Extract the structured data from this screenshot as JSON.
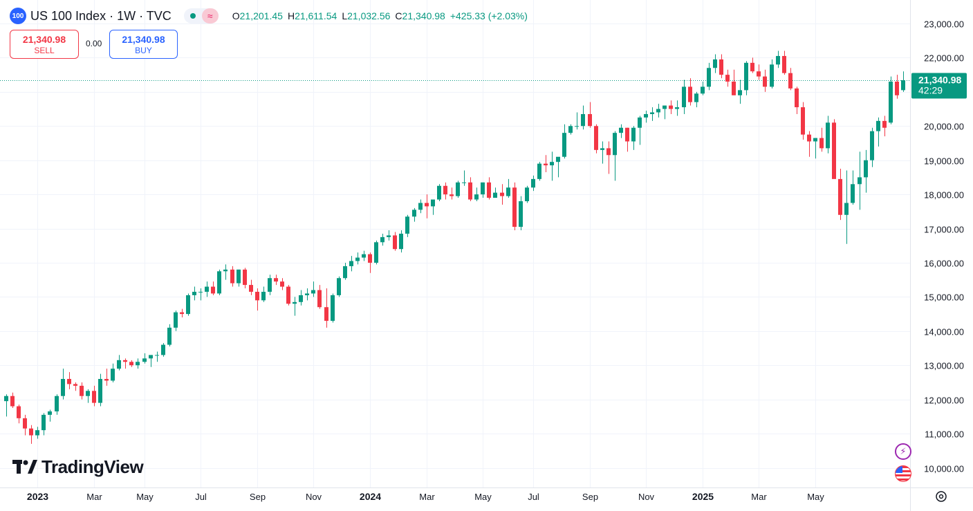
{
  "header": {
    "badge": "100",
    "title": "US 100 Index · 1W · TVC",
    "ohlc": {
      "o_label": "O",
      "o_value": "21,201.45",
      "h_label": "H",
      "h_value": "21,611.54",
      "l_label": "L",
      "l_value": "21,032.56",
      "c_label": "C",
      "c_value": "21,340.98",
      "change": "+425.33 (+2.03%)"
    }
  },
  "trade": {
    "sell_price": "21,340.98",
    "sell_label": "SELL",
    "spread": "0.00",
    "buy_price": "21,340.98",
    "buy_label": "BUY"
  },
  "logo": {
    "text": "TradingView"
  },
  "price_tag": {
    "price": "21,340.98",
    "countdown": "42:29"
  },
  "colors": {
    "up": "#089981",
    "down": "#f23645",
    "grid": "#f0f3fa",
    "text": "#131722",
    "accent": "#2962ff"
  },
  "icons": [
    "gear-icon",
    "lightning-icon",
    "us-flag-icon"
  ],
  "chart_data": {
    "type": "candlestick",
    "title": "US 100 Index · 1W · TVC",
    "ylim": [
      9700,
      23300
    ],
    "y_ticks": [
      10000,
      11000,
      12000,
      13000,
      14000,
      15000,
      16000,
      17000,
      18000,
      19000,
      20000,
      21000,
      22000,
      23000
    ],
    "y_tick_labels": [
      "10,000.00",
      "11,000.00",
      "12,000.00",
      "13,000.00",
      "14,000.00",
      "15,000.00",
      "16,000.00",
      "17,000.00",
      "18,000.00",
      "19,000.00",
      "20,000.00",
      "21,000.00",
      "22,000.00",
      "23,000.00"
    ],
    "x_tick_labels": [
      "2023",
      "Mar",
      "May",
      "Jul",
      "Sep",
      "Nov",
      "2024",
      "Mar",
      "May",
      "Jul",
      "Sep",
      "Nov",
      "2025",
      "Mar",
      "May"
    ],
    "x_tick_bold": [
      true,
      false,
      false,
      false,
      false,
      false,
      true,
      false,
      false,
      false,
      false,
      false,
      true,
      false,
      false
    ],
    "x_tick_index": [
      5,
      14,
      22,
      31,
      40,
      49,
      58,
      67,
      76,
      84,
      93,
      102,
      111,
      120,
      129
    ],
    "last_price": 21340.98,
    "series": [
      {
        "name": "US 100 Index",
        "ohlc": [
          [
            11950,
            12150,
            11500,
            12100
          ],
          [
            12100,
            12200,
            11750,
            11800
          ],
          [
            11800,
            11850,
            11300,
            11450
          ],
          [
            11450,
            11550,
            10950,
            11150
          ],
          [
            11150,
            11250,
            10700,
            10950
          ],
          [
            10950,
            11200,
            10850,
            11100
          ],
          [
            11100,
            11600,
            10950,
            11550
          ],
          [
            11550,
            11700,
            11350,
            11650
          ],
          [
            11650,
            12150,
            11550,
            12100
          ],
          [
            12100,
            12900,
            12000,
            12600
          ],
          [
            12600,
            12800,
            12300,
            12450
          ],
          [
            12450,
            12500,
            12250,
            12400
          ],
          [
            12400,
            12500,
            12000,
            12100
          ],
          [
            12100,
            12300,
            11900,
            12250
          ],
          [
            12250,
            12400,
            11800,
            11900
          ],
          [
            11900,
            12750,
            11800,
            12600
          ],
          [
            12600,
            12900,
            12400,
            12550
          ],
          [
            12550,
            13050,
            12500,
            12900
          ],
          [
            12900,
            13300,
            12850,
            13150
          ],
          [
            13150,
            13200,
            12900,
            13100
          ],
          [
            13100,
            13150,
            12950,
            13000
          ],
          [
            13000,
            13200,
            12900,
            13100
          ],
          [
            13100,
            13350,
            13050,
            13200
          ],
          [
            13200,
            13300,
            12950,
            13300
          ],
          [
            13300,
            13400,
            13100,
            13300
          ],
          [
            13300,
            13650,
            13250,
            13600
          ],
          [
            13600,
            14200,
            13550,
            14100
          ],
          [
            14100,
            14600,
            14000,
            14550
          ],
          [
            14550,
            14650,
            14400,
            14500
          ],
          [
            14500,
            15100,
            14450,
            15050
          ],
          [
            15050,
            15300,
            14900,
            15150
          ],
          [
            15150,
            15250,
            14900,
            15150
          ],
          [
            15150,
            15450,
            15000,
            15300
          ],
          [
            15300,
            15450,
            15050,
            15100
          ],
          [
            15100,
            15800,
            15050,
            15750
          ],
          [
            15750,
            15950,
            15500,
            15800
          ],
          [
            15800,
            15900,
            15300,
            15400
          ],
          [
            15400,
            15800,
            15300,
            15800
          ],
          [
            15800,
            15850,
            15250,
            15350
          ],
          [
            15350,
            15500,
            15050,
            15150
          ],
          [
            15150,
            15250,
            14600,
            14900
          ],
          [
            14900,
            15300,
            14850,
            15150
          ],
          [
            15150,
            15650,
            15050,
            15550
          ],
          [
            15550,
            15650,
            15350,
            15450
          ],
          [
            15450,
            15550,
            15200,
            15300
          ],
          [
            15300,
            15350,
            14750,
            14800
          ],
          [
            14800,
            15000,
            14450,
            14850
          ],
          [
            14850,
            15200,
            14750,
            15050
          ],
          [
            15050,
            15250,
            14900,
            15100
          ],
          [
            15100,
            15450,
            15000,
            15200
          ],
          [
            15200,
            15350,
            14650,
            14700
          ],
          [
            14700,
            15250,
            14100,
            14300
          ],
          [
            14300,
            15100,
            14250,
            15050
          ],
          [
            15050,
            15600,
            15000,
            15550
          ],
          [
            15550,
            16000,
            15500,
            15900
          ],
          [
            15900,
            16200,
            15750,
            16050
          ],
          [
            16050,
            16300,
            15950,
            16150
          ],
          [
            16150,
            16350,
            16050,
            16250
          ],
          [
            16250,
            16300,
            15700,
            16000
          ],
          [
            16000,
            16650,
            15950,
            16600
          ],
          [
            16600,
            16850,
            16500,
            16750
          ],
          [
            16750,
            16950,
            16650,
            16800
          ],
          [
            16800,
            16900,
            16350,
            16400
          ],
          [
            16400,
            16950,
            16300,
            16850
          ],
          [
            16850,
            17400,
            16750,
            17350
          ],
          [
            17350,
            17600,
            17200,
            17550
          ],
          [
            17550,
            17850,
            17450,
            17750
          ],
          [
            17750,
            18000,
            17300,
            17650
          ],
          [
            17650,
            17850,
            17400,
            17850
          ],
          [
            17850,
            18300,
            17800,
            18250
          ],
          [
            18250,
            18350,
            17850,
            18000
          ],
          [
            18000,
            18200,
            17850,
            17950
          ],
          [
            17950,
            18400,
            17900,
            18350
          ],
          [
            18350,
            18700,
            18250,
            18350
          ],
          [
            18350,
            18500,
            17800,
            17850
          ],
          [
            17850,
            18200,
            17800,
            18000
          ],
          [
            18000,
            18350,
            17900,
            18350
          ],
          [
            18350,
            18500,
            17850,
            17900
          ],
          [
            17900,
            18200,
            17900,
            18050
          ],
          [
            18050,
            18300,
            17700,
            17950
          ],
          [
            17950,
            18450,
            17900,
            18200
          ],
          [
            18200,
            18350,
            16950,
            17050
          ],
          [
            17050,
            17950,
            16950,
            17800
          ],
          [
            17800,
            18250,
            17750,
            18200
          ],
          [
            18200,
            18550,
            18100,
            18450
          ],
          [
            18450,
            18950,
            18400,
            18900
          ],
          [
            18900,
            19150,
            18650,
            18850
          ],
          [
            18850,
            19250,
            18400,
            18950
          ],
          [
            18950,
            19050,
            18500,
            19100
          ],
          [
            19100,
            20050,
            19050,
            19800
          ],
          [
            19800,
            20050,
            19750,
            20000
          ],
          [
            20000,
            20400,
            19900,
            20000
          ],
          [
            20000,
            20600,
            19900,
            20350
          ],
          [
            20350,
            20700,
            19950,
            20000
          ],
          [
            20000,
            20050,
            19200,
            19300
          ],
          [
            19300,
            19550,
            18900,
            19350
          ],
          [
            19350,
            19550,
            18600,
            19150
          ],
          [
            19150,
            19850,
            18400,
            19800
          ],
          [
            19800,
            20050,
            19650,
            19950
          ],
          [
            19950,
            19950,
            19250,
            19550
          ],
          [
            19550,
            20000,
            19300,
            19950
          ],
          [
            19950,
            20300,
            19450,
            20250
          ],
          [
            20250,
            20450,
            20100,
            20350
          ],
          [
            20350,
            20550,
            20150,
            20400
          ],
          [
            20400,
            20650,
            20250,
            20500
          ],
          [
            20500,
            20600,
            20200,
            20600
          ],
          [
            20600,
            20750,
            20350,
            20500
          ],
          [
            20500,
            20750,
            20300,
            20550
          ],
          [
            20550,
            21350,
            20350,
            21150
          ],
          [
            21150,
            21400,
            20600,
            20700
          ],
          [
            20700,
            21000,
            20550,
            20950
          ],
          [
            20950,
            21300,
            20900,
            21150
          ],
          [
            21150,
            21850,
            21050,
            21700
          ],
          [
            21700,
            22100,
            21550,
            21950
          ],
          [
            21950,
            22100,
            21400,
            21500
          ],
          [
            21500,
            21650,
            21150,
            21300
          ],
          [
            21300,
            21650,
            20900,
            20900
          ],
          [
            20900,
            21350,
            20650,
            21050
          ],
          [
            21050,
            21900,
            20900,
            21850
          ],
          [
            21850,
            22000,
            21550,
            21600
          ],
          [
            21600,
            21800,
            21350,
            21450
          ],
          [
            21450,
            21650,
            21000,
            21150
          ],
          [
            21150,
            21950,
            21100,
            21800
          ],
          [
            21800,
            22200,
            21700,
            22050
          ],
          [
            22050,
            22200,
            21500,
            21550
          ],
          [
            21550,
            21700,
            21050,
            21100
          ],
          [
            21100,
            21150,
            20350,
            20550
          ],
          [
            20550,
            20700,
            19600,
            19750
          ],
          [
            19750,
            19850,
            19100,
            19550
          ],
          [
            19550,
            19650,
            19050,
            19650
          ],
          [
            19650,
            19950,
            19250,
            19350
          ],
          [
            19350,
            20300,
            19200,
            20100
          ],
          [
            20100,
            20200,
            18550,
            18450
          ],
          [
            18450,
            18750,
            17250,
            17400
          ],
          [
            17400,
            18700,
            16550,
            17750
          ],
          [
            17750,
            18700,
            17700,
            18300
          ],
          [
            18300,
            19250,
            17550,
            18500
          ],
          [
            18500,
            19300,
            18050,
            19000
          ],
          [
            19000,
            19950,
            18800,
            19850
          ],
          [
            19850,
            20250,
            19400,
            20150
          ],
          [
            20150,
            20300,
            19700,
            19950
          ],
          [
            20100,
            21450,
            20050,
            21300
          ],
          [
            21300,
            21500,
            20800,
            20900
          ],
          [
            21050,
            21600,
            21000,
            21340.98
          ]
        ]
      }
    ]
  }
}
